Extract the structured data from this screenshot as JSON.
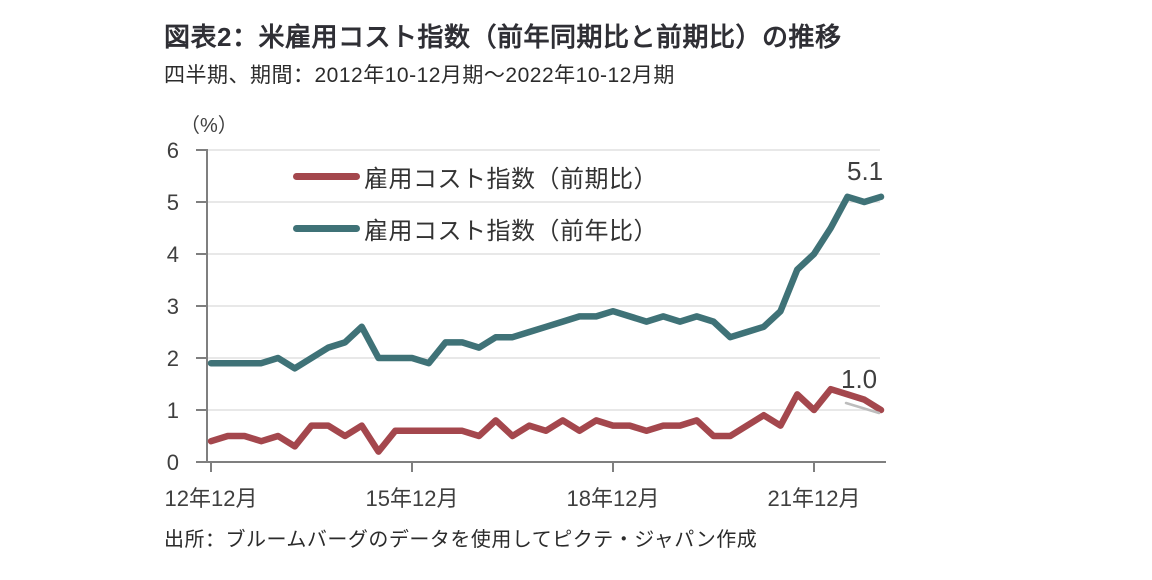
{
  "header": {
    "title": "図表2：米雇用コスト指数（前年同期比と前期比）の推移",
    "subtitle": "四半期、期間：2012年10-12月期～2022年10-12月期"
  },
  "footer": {
    "source": "出所：ブルームバーグのデータを使用してピクテ・ジャパン作成"
  },
  "chart_data": {
    "type": "line",
    "title": "米雇用コスト指数（前年同期比と前期比）の推移",
    "unit_label": "（%）",
    "xlabel": "",
    "ylabel": "%",
    "ylim": [
      0,
      6
    ],
    "y_ticks": [
      0,
      1,
      2,
      3,
      4,
      5,
      6
    ],
    "grid": true,
    "grid_color": "#d9d9d9",
    "axis_color": "#7f7f7f",
    "tick_label_color": "#3f3f3f",
    "pointer_color": "#bdbdbd",
    "legend_position": "inside-top-left",
    "n_points": 41,
    "x_start_label": "2012年10-12月期",
    "x_end_label": "2022年10-12月期",
    "x_tick_labels": [
      "12年12月",
      "15年12月",
      "18年12月",
      "21年12月"
    ],
    "x_tick_indices": [
      0,
      12,
      24,
      36
    ],
    "series": [
      {
        "name": "雇用コスト指数（前期比）",
        "color": "#a4474d",
        "end_label": "1.0",
        "values": [
          0.4,
          0.5,
          0.5,
          0.4,
          0.5,
          0.3,
          0.7,
          0.7,
          0.5,
          0.7,
          0.2,
          0.6,
          0.6,
          0.6,
          0.6,
          0.6,
          0.5,
          0.8,
          0.5,
          0.7,
          0.6,
          0.8,
          0.6,
          0.8,
          0.7,
          0.7,
          0.6,
          0.7,
          0.7,
          0.8,
          0.5,
          0.5,
          0.7,
          0.9,
          0.7,
          1.3,
          1.0,
          1.4,
          1.3,
          1.2,
          1.0
        ]
      },
      {
        "name": "雇用コスト指数（前年比）",
        "color": "#3f7277",
        "end_label": "5.1",
        "values": [
          1.9,
          1.9,
          1.9,
          1.9,
          2.0,
          1.8,
          2.0,
          2.2,
          2.3,
          2.6,
          2.0,
          2.0,
          2.0,
          1.9,
          2.3,
          2.3,
          2.2,
          2.4,
          2.4,
          2.5,
          2.6,
          2.7,
          2.8,
          2.8,
          2.9,
          2.8,
          2.7,
          2.8,
          2.7,
          2.8,
          2.7,
          2.4,
          2.5,
          2.6,
          2.9,
          3.7,
          4.0,
          4.5,
          5.1,
          5.0,
          5.1
        ]
      }
    ]
  }
}
